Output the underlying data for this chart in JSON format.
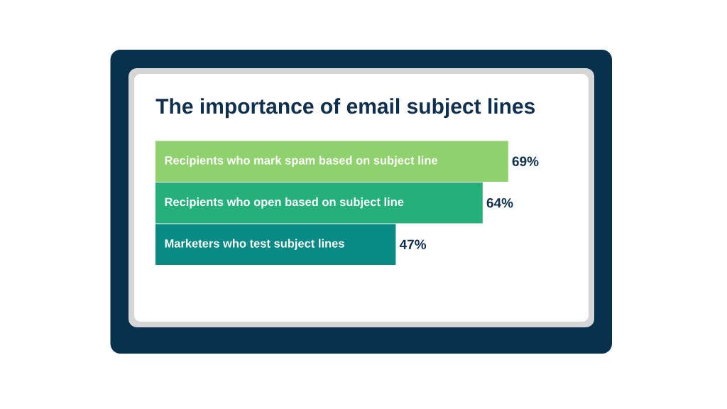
{
  "chart_data": {
    "type": "bar",
    "orientation": "horizontal",
    "title": "The importance of email subject lines",
    "categories": [
      "Recipients who mark spam based on subject line",
      "Recipients who open based on subject line",
      "Marketers who test subject lines"
    ],
    "values": [
      69,
      64,
      47
    ],
    "colors": [
      "#8fd16c",
      "#25b07b",
      "#0a8a84"
    ],
    "value_labels": [
      "69%",
      "64%",
      "47%"
    ],
    "tick_labels": "y"
  }
}
